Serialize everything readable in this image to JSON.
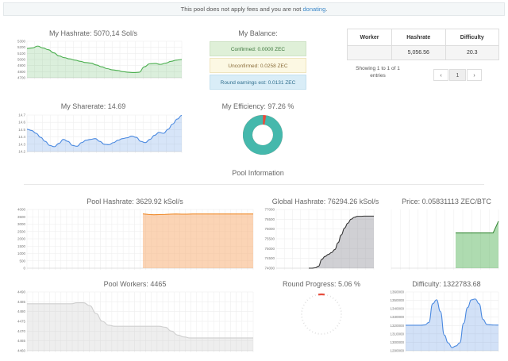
{
  "notice": {
    "text": "This pool does not apply fees and you are not ",
    "link": "donating",
    "tail": "."
  },
  "my_hashrate": {
    "title": "My Hashrate: 5070,14 Sol/s"
  },
  "my_sharerate": {
    "title": "My Sharerate: 14.69"
  },
  "my_balance": {
    "title": "My Balance:",
    "confirmed": "Confirmed: 0.0000 ZEC",
    "unconfirmed": "Unconfirmed: 0.0258 ZEC",
    "round_earnings": "Round earnings est: 0.0131 ZEC"
  },
  "my_efficiency": {
    "title": "My Efficiency: 97.26 %"
  },
  "workers_table": {
    "headers": [
      "Worker",
      "Hashrate",
      "Difficulty"
    ],
    "row": {
      "hashrate": "5,056.56",
      "difficulty": "20.3"
    },
    "entries_text": "Showing 1 to 1 of 1 entries",
    "pager": {
      "prev": "‹",
      "page": "1",
      "next": "›"
    }
  },
  "section_title": "Pool Information",
  "pool_hashrate": {
    "title": "Pool Hashrate: 3629.92 kSol/s"
  },
  "global_hashrate": {
    "title": "Global Hashrate: 76294.26 kSol/s"
  },
  "price": {
    "title": "Price: 0.05831113 ZEC/BTC"
  },
  "pool_workers": {
    "title": "Pool Workers: 4465"
  },
  "round_progress": {
    "title": "Round Progress: 5.06 %",
    "value_percent": 5.06
  },
  "difficulty": {
    "title": "Difficulty: 1322783.68"
  },
  "colors": {
    "green": "#4caf50",
    "blue": "#4a89e0",
    "teal": "#45b8ac",
    "red": "#e74c3c",
    "orange": "#ef8a2a",
    "dark": "#333333",
    "gray": "#c8c8c8"
  },
  "chart_data": [
    {
      "type": "area",
      "title": "My Hashrate: 5070,14 Sol/s",
      "yticks": [
        "5300",
        "5200",
        "5100",
        "5000",
        "4900",
        "4800",
        "4700"
      ],
      "ylim": [
        4700,
        5300
      ],
      "values": [
        5180,
        5190,
        5220,
        5190,
        5160,
        5110,
        5060,
        5030,
        5010,
        4990,
        4970,
        4950,
        4940,
        4910,
        4880,
        4850,
        4830,
        4820,
        4800,
        4790,
        4785,
        4790,
        4880,
        4930,
        4935,
        4920,
        4940,
        4970,
        4990,
        5000
      ]
    },
    {
      "type": "area",
      "title": "My Sharerate: 14.69",
      "yticks": [
        "14.7",
        "14.6",
        "14.5",
        "14.4",
        "14.3",
        "14.2"
      ],
      "ylim": [
        13.8,
        14.7
      ],
      "values": [
        14.35,
        14.32,
        14.25,
        14.15,
        14.05,
        13.95,
        13.92,
        14.0,
        14.1,
        14.05,
        13.95,
        13.93,
        14.02,
        14.08,
        14.1,
        14.12,
        14.05,
        13.98,
        13.97,
        14.02,
        14.08,
        14.12,
        14.14,
        14.18,
        14.15,
        14.05,
        14.02,
        14.1,
        14.2,
        14.27,
        14.25,
        14.35,
        14.48,
        14.6,
        14.69
      ]
    },
    {
      "type": "pie",
      "title": "My Efficiency: 97.26 %",
      "values": [
        97.26,
        2.74
      ]
    },
    {
      "type": "area",
      "title": "Pool Hashrate: 3629.92 kSol/s",
      "yticks": [
        "4000",
        "3500",
        "3000",
        "2500",
        "2000",
        "1500",
        "1000",
        "500",
        "0"
      ],
      "ylim": [
        0,
        4000
      ],
      "values": [
        null,
        null,
        null,
        null,
        null,
        null,
        null,
        null,
        null,
        null,
        null,
        null,
        null,
        null,
        null,
        null,
        null,
        null,
        null,
        null,
        null,
        3700,
        3660,
        3640,
        3650,
        3660,
        3680,
        3690,
        3680,
        3680,
        3690,
        3695,
        3690,
        3690,
        3690,
        3690,
        3690,
        3690,
        3690,
        3690,
        3690,
        3690
      ]
    },
    {
      "type": "area",
      "title": "Global Hashrate: 76294.26 kSol/s",
      "yticks": [
        "77000",
        "76500",
        "76000",
        "75500",
        "75000",
        "74500",
        "74000"
      ],
      "ylim": [
        74000,
        77000
      ],
      "values": [
        null,
        null,
        null,
        null,
        null,
        null,
        null,
        null,
        null,
        null,
        74000,
        74000,
        74020,
        74100,
        74450,
        74600,
        74700,
        74800,
        74950,
        75300,
        75700,
        76050,
        76300,
        76500,
        76600,
        76650,
        76650,
        76660,
        76660,
        76660,
        76660
      ]
    },
    {
      "type": "area",
      "title": "Price: 0.05831113 ZEC/BTC",
      "values": [
        null,
        null,
        null,
        null,
        null,
        null,
        null,
        null,
        null,
        null,
        null,
        null,
        0.0581,
        0.0581,
        0.0581,
        0.0581,
        0.0581,
        0.0581,
        0.0581,
        0.0581,
        0.0583
      ],
      "ylim": [
        0.0575,
        0.0585
      ]
    },
    {
      "type": "area",
      "title": "Pool Workers: 4465",
      "yticks": [
        "4490",
        "4485",
        "4480",
        "4475",
        "4470",
        "4465",
        "4460"
      ],
      "ylim": [
        4460,
        4490
      ],
      "values": [
        4484,
        4484,
        4484,
        4484,
        4484,
        4484,
        4484,
        4484,
        4484.5,
        4484.5,
        4483,
        4479,
        4475,
        4473,
        4472.5,
        4472.5,
        4472.5,
        4472.5,
        4472.5,
        4472.5,
        4472.5,
        4472.5,
        4472,
        4470,
        4468,
        4467,
        4466.5,
        4466.5,
        4466.5,
        4466.5,
        4466.5,
        4466.5,
        4466.5,
        4466.5,
        4466.5,
        4466.5,
        4466.5
      ]
    },
    {
      "type": "area",
      "title": "Difficulty: 1322783.68",
      "yticks": [
        "1360000",
        "1350000",
        "1340000",
        "1330000",
        "1320000",
        "1310000",
        "1300000",
        "1290000"
      ],
      "ylim": [
        1290000,
        1365000
      ],
      "values": [
        1322500,
        1322500,
        1322500,
        1322500,
        1322500,
        1323000,
        1326000,
        1350000,
        1355000,
        1340000,
        1310000,
        1300000,
        1294000,
        1296000,
        1300000,
        1325000,
        1345000,
        1355000,
        1356000,
        1350000,
        1330000,
        1323500,
        1323000,
        1322800,
        1322783
      ]
    }
  ]
}
